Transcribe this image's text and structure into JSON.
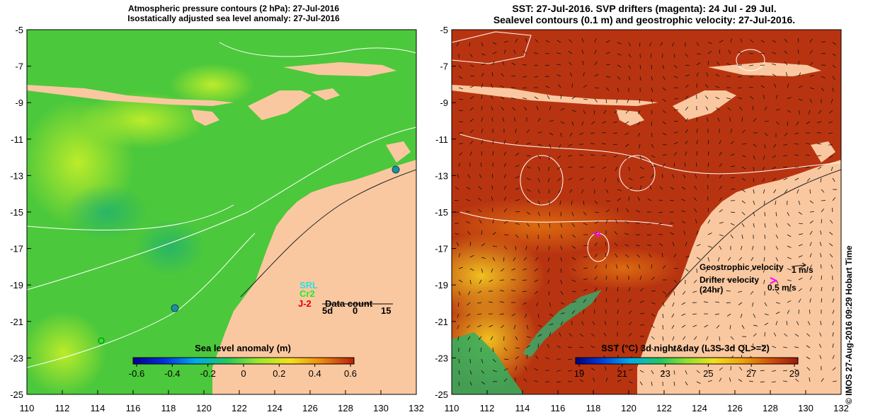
{
  "left_panel": {
    "title_line1": "Atmospheric pressure contours (2 hPa): 27-Jul-2016",
    "title_line2": "Isostatically adjusted sea level anomaly: 27-Jul-2016",
    "colorbar_title": "Sea level anomaly (m)",
    "colorbar_ticks": [
      "-0.6",
      "-0.4",
      "-0.2",
      "0",
      "0.2",
      "0.4",
      "0.6"
    ],
    "legend": {
      "srl": "SRL",
      "cr2": "Cr2",
      "j2": "J-2",
      "data_count_label": "Data count",
      "count_days": "5d",
      "count_zero": "0",
      "count_max": "15"
    },
    "colors": {
      "ocean": "#4cc83c",
      "srl": "#33dddd",
      "cr2": "#22ee22",
      "j2": "#dd0000"
    }
  },
  "right_panel": {
    "title_line1": "SST: 27-Jul-2016. SVP drifters (magenta): 24 Jul - 29 Jul.",
    "title_line2": "Sealevel contours (0.1 m) and geostrophic velocity: 27-Jul-2016.",
    "colorbar_title": "SST (°C) 3d night&day (L3S-3d QL>=2)",
    "colorbar_ticks": [
      "19",
      "21",
      "23",
      "25",
      "27",
      "29"
    ],
    "legend": {
      "geostrophic_label": "Geostrophic velocity",
      "geostrophic_scale": "1 m/s",
      "drifter_label": "Drifter velocity",
      "drifter_period": "(24hr)",
      "drifter_scale": "0.5 m/s"
    },
    "colors": {
      "ocean": "#b83410",
      "drifter": "#ff00ff"
    }
  },
  "axes": {
    "x_ticks": [
      "110",
      "112",
      "114",
      "116",
      "118",
      "120",
      "122",
      "124",
      "126",
      "128",
      "130",
      "132"
    ],
    "y_ticks": [
      "-5",
      "-7",
      "-9",
      "-11",
      "-13",
      "-15",
      "-17",
      "-19",
      "-21",
      "-23",
      "-25"
    ],
    "lon_range": [
      110,
      132
    ],
    "lat_range": [
      -25,
      -5
    ]
  },
  "credit": "© IMOS 27-Aug-2016 09:29 Hobart Time",
  "land_color": "#fac8a0"
}
